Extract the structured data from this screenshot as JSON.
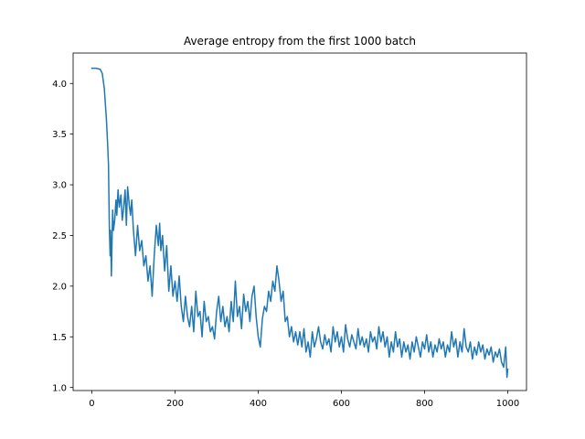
{
  "chart_data": {
    "type": "line",
    "title": "Average entropy from the first 1000 batch",
    "xlabel": "",
    "ylabel": "",
    "xlim": [
      -45,
      1045
    ],
    "ylim": [
      0.97,
      4.3
    ],
    "xticks": [
      0,
      200,
      400,
      600,
      800,
      1000
    ],
    "yticks": [
      1.0,
      1.5,
      2.0,
      2.5,
      3.0,
      3.5,
      4.0
    ],
    "xtick_labels": [
      "0",
      "200",
      "400",
      "600",
      "800",
      "1000"
    ],
    "ytick_labels": [
      "1.0",
      "1.5",
      "2.0",
      "2.5",
      "3.0",
      "3.5",
      "4.0"
    ],
    "grid": false,
    "series": [
      {
        "name": "average entropy",
        "color": "#1f77b4",
        "x": [
          0,
          10,
          20,
          25,
          30,
          35,
          38,
          40,
          42,
          44,
          45,
          47,
          50,
          52,
          55,
          58,
          60,
          63,
          66,
          70,
          73,
          76,
          80,
          83,
          86,
          90,
          93,
          96,
          100,
          105,
          110,
          115,
          120,
          125,
          130,
          135,
          140,
          145,
          150,
          155,
          160,
          163,
          166,
          170,
          175,
          180,
          185,
          190,
          195,
          200,
          205,
          210,
          215,
          220,
          225,
          230,
          235,
          240,
          245,
          250,
          255,
          260,
          265,
          270,
          275,
          280,
          285,
          290,
          295,
          300,
          305,
          310,
          315,
          320,
          325,
          330,
          335,
          340,
          345,
          350,
          355,
          360,
          365,
          370,
          375,
          380,
          385,
          390,
          395,
          400,
          405,
          410,
          415,
          420,
          425,
          430,
          435,
          440,
          445,
          450,
          455,
          460,
          465,
          470,
          475,
          480,
          485,
          490,
          495,
          500,
          505,
          510,
          515,
          520,
          525,
          530,
          535,
          540,
          545,
          550,
          555,
          560,
          565,
          570,
          575,
          580,
          585,
          590,
          595,
          600,
          605,
          610,
          615,
          620,
          625,
          630,
          635,
          640,
          645,
          650,
          655,
          660,
          665,
          670,
          675,
          680,
          685,
          690,
          695,
          700,
          705,
          710,
          715,
          720,
          725,
          730,
          735,
          740,
          745,
          750,
          755,
          760,
          765,
          770,
          775,
          780,
          785,
          790,
          795,
          800,
          805,
          810,
          815,
          820,
          825,
          830,
          835,
          840,
          845,
          850,
          855,
          860,
          865,
          870,
          875,
          880,
          885,
          890,
          895,
          900,
          905,
          910,
          915,
          920,
          925,
          930,
          935,
          940,
          945,
          950,
          955,
          960,
          965,
          970,
          975,
          980,
          985,
          990,
          995,
          998,
          1000
        ],
        "y": [
          4.15,
          4.15,
          4.14,
          4.1,
          3.95,
          3.65,
          3.4,
          3.2,
          2.6,
          2.3,
          2.55,
          2.1,
          2.75,
          2.55,
          2.65,
          2.85,
          2.7,
          2.95,
          2.78,
          2.9,
          2.65,
          2.75,
          2.95,
          2.6,
          2.98,
          2.8,
          2.7,
          2.85,
          2.55,
          2.3,
          2.6,
          2.35,
          2.45,
          2.2,
          2.3,
          2.05,
          2.2,
          1.9,
          2.3,
          2.6,
          2.4,
          2.62,
          2.35,
          2.5,
          2.15,
          2.4,
          1.95,
          2.2,
          1.9,
          2.05,
          1.85,
          2.1,
          1.8,
          1.65,
          1.9,
          1.7,
          1.6,
          1.8,
          1.55,
          1.95,
          1.7,
          1.75,
          1.5,
          1.85,
          1.65,
          1.7,
          1.55,
          1.6,
          1.48,
          1.75,
          1.9,
          1.65,
          1.8,
          1.6,
          1.7,
          1.55,
          1.85,
          1.65,
          2.05,
          1.7,
          1.8,
          1.58,
          1.92,
          1.75,
          1.85,
          1.65,
          1.9,
          2.0,
          1.7,
          1.5,
          1.4,
          1.68,
          1.8,
          1.75,
          1.95,
          1.85,
          2.05,
          1.95,
          2.2,
          2.05,
          1.85,
          1.95,
          1.65,
          1.7,
          1.5,
          1.6,
          1.45,
          1.55,
          1.42,
          1.55,
          1.4,
          1.58,
          1.35,
          1.45,
          1.3,
          1.55,
          1.4,
          1.48,
          1.6,
          1.45,
          1.38,
          1.52,
          1.42,
          1.48,
          1.35,
          1.6,
          1.45,
          1.55,
          1.4,
          1.5,
          1.35,
          1.62,
          1.48,
          1.4,
          1.52,
          1.45,
          1.38,
          1.58,
          1.42,
          1.5,
          1.4,
          1.48,
          1.35,
          1.55,
          1.45,
          1.5,
          1.38,
          1.6,
          1.45,
          1.55,
          1.4,
          1.5,
          1.3,
          1.45,
          1.35,
          1.55,
          1.4,
          1.48,
          1.3,
          1.45,
          1.35,
          1.42,
          1.28,
          1.45,
          1.35,
          1.5,
          1.4,
          1.3,
          1.45,
          1.38,
          1.52,
          1.35,
          1.45,
          1.3,
          1.42,
          1.35,
          1.48,
          1.38,
          1.45,
          1.3,
          1.42,
          1.35,
          1.55,
          1.4,
          1.48,
          1.3,
          1.45,
          1.35,
          1.58,
          1.4,
          1.35,
          1.45,
          1.28,
          1.4,
          1.32,
          1.45,
          1.35,
          1.42,
          1.28,
          1.38,
          1.32,
          1.4,
          1.25,
          1.35,
          1.3,
          1.38,
          1.25,
          1.2,
          1.4,
          1.1,
          1.18
        ]
      }
    ]
  }
}
